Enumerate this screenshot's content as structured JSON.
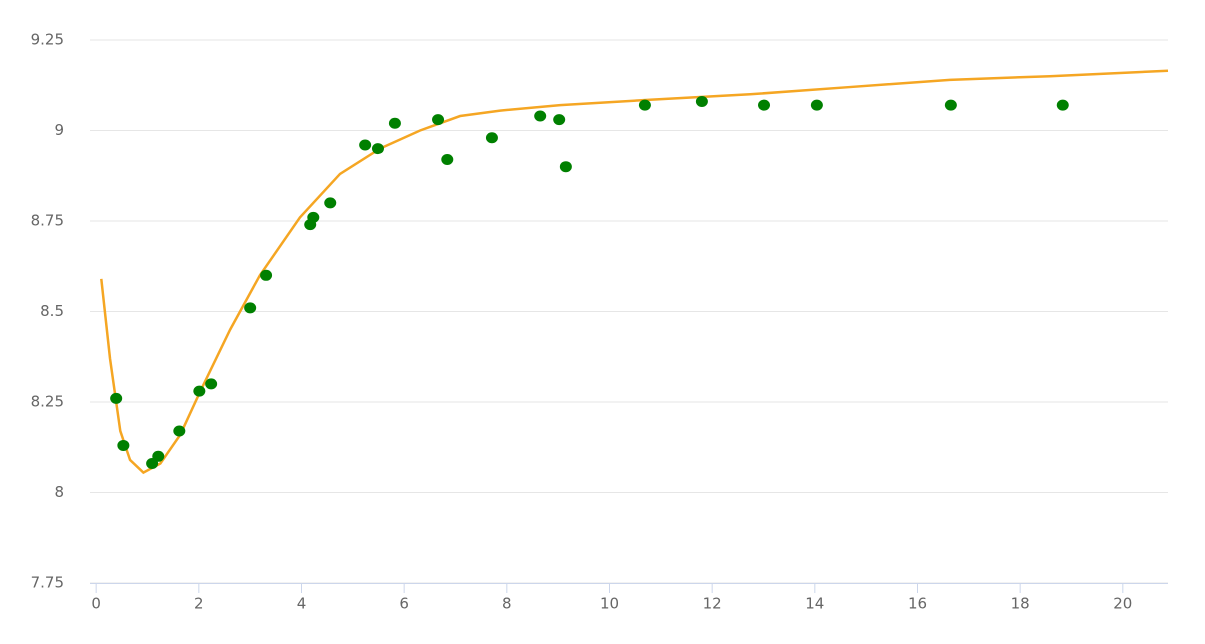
{
  "chart_data": {
    "type": "scatter",
    "xlim": [
      -0.12,
      20.88
    ],
    "ylim": [
      7.75,
      9.25
    ],
    "xticks": [
      0,
      2,
      4,
      6,
      8,
      10,
      12,
      14,
      16,
      18,
      20
    ],
    "yticks": [
      7.75,
      8,
      8.25,
      8.5,
      8.75,
      9,
      9.25
    ],
    "grid": true,
    "series": [
      {
        "type": "scatter",
        "color": "#008000",
        "x": [
          0.39,
          0.53,
          1.09,
          1.21,
          1.62,
          2.01,
          2.24,
          3.0,
          3.31,
          4.17,
          4.23,
          4.56,
          5.24,
          5.49,
          5.82,
          6.66,
          6.84,
          7.71,
          8.65,
          9.02,
          9.15,
          10.69,
          11.8,
          13.01,
          14.04,
          16.65,
          18.83
        ],
        "values": [
          8.26,
          8.13,
          8.08,
          8.1,
          8.17,
          8.28,
          8.3,
          8.51,
          8.6,
          8.74,
          8.76,
          8.8,
          8.96,
          8.95,
          9.02,
          9.03,
          8.92,
          8.98,
          9.04,
          9.03,
          8.9,
          9.07,
          9.08,
          9.07,
          9.07,
          9.07,
          9.07
        ]
      },
      {
        "type": "line",
        "color": "#f5a623",
        "x": [
          0.1,
          0.27,
          0.47,
          0.66,
          0.92,
          1.25,
          1.64,
          2.03,
          2.61,
          3.19,
          3.97,
          4.75,
          5.53,
          6.31,
          7.09,
          7.87,
          9.04,
          10.79,
          12.74,
          14.68,
          16.63,
          18.58,
          20.88
        ],
        "values": [
          8.59,
          8.37,
          8.17,
          8.09,
          8.055,
          8.08,
          8.16,
          8.28,
          8.45,
          8.6,
          8.76,
          8.88,
          8.95,
          9.0,
          9.04,
          9.055,
          9.07,
          9.085,
          9.1,
          9.12,
          9.14,
          9.15,
          9.165
        ]
      }
    ]
  }
}
